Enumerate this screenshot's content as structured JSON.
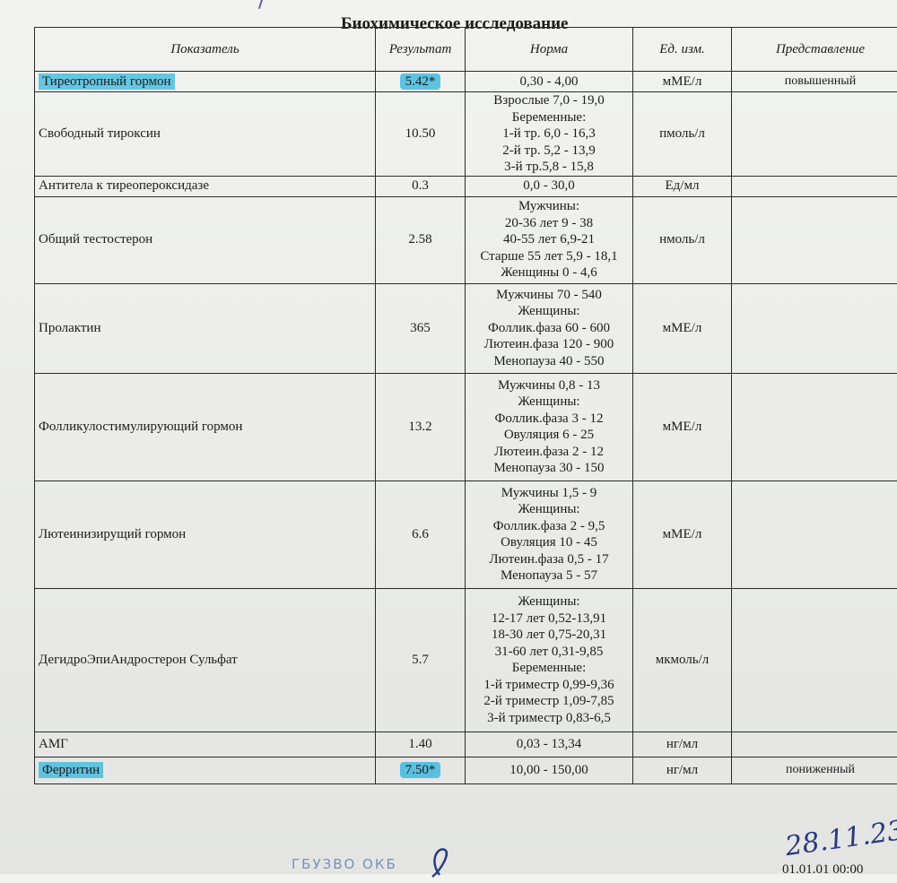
{
  "document": {
    "title": "Биохимическое исследование",
    "columns": [
      "Показатель",
      "Результат",
      "Норма",
      "Ед. изм.",
      "Представление"
    ],
    "rows": [
      {
        "name": "Тиреотропный гормон",
        "result": "5.42*",
        "norm": [
          "0,30 - 4,00"
        ],
        "unit": "мМЕ/л",
        "representation": "повышенный",
        "highlighted": true
      },
      {
        "name": "Свободный тироксин",
        "result": "10.50",
        "norm": [
          "Взрослые 7,0 - 19,0",
          "Беременные:",
          "1-й тр. 6,0 - 16,3",
          "2-й тр. 5,2 - 13,9",
          "3-й тр.5,8 - 15,8"
        ],
        "unit": "пмоль/л",
        "representation": ""
      },
      {
        "name": "Антитела к тиреопероксидазе",
        "result": "0.3",
        "norm": [
          "0,0 - 30,0"
        ],
        "unit": "Ед/мл",
        "representation": ""
      },
      {
        "name": "Общий тестостерон",
        "result": "2.58",
        "norm": [
          "Мужчины:",
          "20-36 лет 9 - 38",
          "40-55 лет 6,9-21",
          "Старше 55 лет 5,9 - 18,1",
          "Женщины 0 - 4,6"
        ],
        "unit": "нмоль/л",
        "representation": ""
      },
      {
        "name": "Пролактин",
        "result": "365",
        "norm": [
          "Мужчины 70 - 540",
          "Женщины:",
          "Фоллик.фаза 60 - 600",
          "Лютеин.фаза 120 - 900",
          "Менопауза 40 - 550"
        ],
        "unit": "мМЕ/л",
        "representation": ""
      },
      {
        "name": "Фолликулостимулирующий гормон",
        "result": "13.2",
        "norm": [
          "Мужчины 0,8 - 13",
          "Женщины:",
          "Фоллик.фаза 3 - 12",
          "Овуляция 6 - 25",
          "Лютеин.фаза 2 - 12",
          "Менопауза 30 - 150"
        ],
        "unit": "мМЕ/л",
        "representation": ""
      },
      {
        "name": "Лютеинизирущий гормон",
        "result": "6.6",
        "norm": [
          "Мужчины 1,5 - 9",
          "Женщины:",
          "Фоллик.фаза 2 - 9,5",
          "Овуляция 10 - 45",
          "Лютеин.фаза 0,5 - 17",
          "Менопауза 5 - 57"
        ],
        "unit": "мМЕ/л",
        "representation": ""
      },
      {
        "name": "ДегидроЭпиАндростерон Сульфат",
        "result": "5.7",
        "norm": [
          "Женщины:",
          "12-17 лет 0,52-13,91",
          "18-30 лет 0,75-20,31",
          "31-60 лет 0,31-9,85",
          "Беременные:",
          "1-й триместр 0,99-9,36",
          "2-й триместр 1,09-7,85",
          "3-й триместр 0,83-6,5"
        ],
        "unit": "мкмоль/л",
        "representation": ""
      },
      {
        "name": "АМГ",
        "result": "1.40",
        "norm": [
          "0,03 - 13,34"
        ],
        "unit": "нг/мл",
        "representation": ""
      },
      {
        "name": "Ферритин",
        "result": "7.50*",
        "norm": [
          "10,00 - 150,00"
        ],
        "unit": "нг/мл",
        "representation": "пониженный",
        "highlighted": true
      }
    ],
    "highlight_color": "#28b4dc"
  },
  "footer": {
    "stamp": "ГБУЗВО ОКБ",
    "handwritten_date": "28.11.23",
    "printed_time": "01.01.01 00:00"
  }
}
